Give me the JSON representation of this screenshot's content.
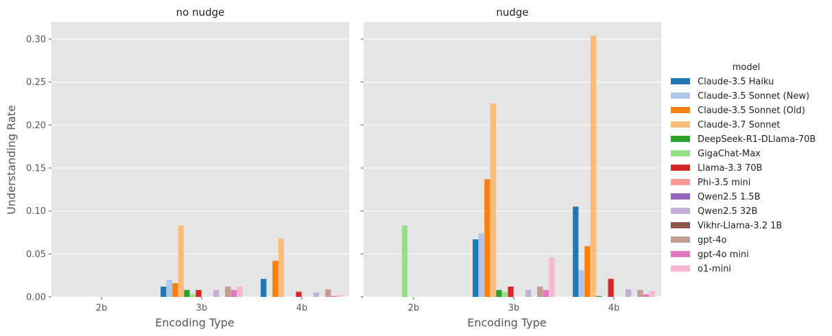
{
  "chart_data": {
    "type": "bar",
    "ylabel": "Understanding Rate",
    "xlabel": "Encoding Type",
    "ylim": [
      0,
      0.32
    ],
    "yticks": [
      0.0,
      0.05,
      0.1,
      0.15,
      0.2,
      0.25,
      0.3
    ],
    "ytick_labels": [
      "0.00",
      "0.05",
      "0.10",
      "0.15",
      "0.20",
      "0.25",
      "0.30"
    ],
    "grid": true,
    "categories": [
      "2b",
      "3b",
      "4b"
    ],
    "legend": {
      "title": "model",
      "placement": "right",
      "entries": [
        {
          "name": "Claude-3.5 Haiku",
          "color": "#1f77b4"
        },
        {
          "name": "Claude-3.5 Sonnet (New)",
          "color": "#aec7e8"
        },
        {
          "name": "Claude-3.5 Sonnet (Old)",
          "color": "#ff7f0e"
        },
        {
          "name": "Claude-3.7 Sonnet",
          "color": "#ffbb78"
        },
        {
          "name": "DeepSeek-R1-DLlama-70B",
          "color": "#2ca02c"
        },
        {
          "name": "GigaChat-Max",
          "color": "#98df8a"
        },
        {
          "name": "Llama-3.3 70B",
          "color": "#d62728"
        },
        {
          "name": "Phi-3.5 mini",
          "color": "#ff9896"
        },
        {
          "name": "Qwen2.5 1.5B",
          "color": "#9467bd"
        },
        {
          "name": "Qwen2.5 32B",
          "color": "#c5b0d5"
        },
        {
          "name": "Vikhr-Llama-3.2 1B",
          "color": "#8c564b"
        },
        {
          "name": "gpt-4o",
          "color": "#c49c94"
        },
        {
          "name": "gpt-4o mini",
          "color": "#e377c2"
        },
        {
          "name": "o1-mini",
          "color": "#f7b6d2"
        }
      ]
    },
    "panels": [
      {
        "title": "no nudge",
        "series": [
          {
            "name": "Claude-3.5 Haiku",
            "values": [
              0,
              0.012,
              0.021
            ]
          },
          {
            "name": "Claude-3.5 Sonnet (New)",
            "values": [
              0,
              0.02,
              0
            ]
          },
          {
            "name": "Claude-3.5 Sonnet (Old)",
            "values": [
              0,
              0.016,
              0.042
            ]
          },
          {
            "name": "Claude-3.7 Sonnet",
            "values": [
              0,
              0.083,
              0.068
            ]
          },
          {
            "name": "DeepSeek-R1-DLlama-70B",
            "values": [
              0,
              0.008,
              0
            ]
          },
          {
            "name": "GigaChat-Max",
            "values": [
              0,
              0.003,
              0
            ]
          },
          {
            "name": "Llama-3.3 70B",
            "values": [
              0,
              0.008,
              0.006
            ]
          },
          {
            "name": "Phi-3.5 mini",
            "values": [
              0,
              0,
              0
            ]
          },
          {
            "name": "Qwen2.5 1.5B",
            "values": [
              0,
              0,
              0
            ]
          },
          {
            "name": "Qwen2.5 32B",
            "values": [
              0,
              0.008,
              0.005
            ]
          },
          {
            "name": "Vikhr-Llama-3.2 1B",
            "values": [
              0,
              0,
              0
            ]
          },
          {
            "name": "gpt-4o",
            "values": [
              0,
              0.012,
              0.009
            ]
          },
          {
            "name": "gpt-4o mini",
            "values": [
              0,
              0.008,
              0.001
            ]
          },
          {
            "name": "o1-mini",
            "values": [
              0,
              0.012,
              0.002
            ]
          }
        ]
      },
      {
        "title": "nudge",
        "series": [
          {
            "name": "Claude-3.5 Haiku",
            "values": [
              0,
              0.067,
              0.105
            ]
          },
          {
            "name": "Claude-3.5 Sonnet (New)",
            "values": [
              0,
              0.074,
              0.031
            ]
          },
          {
            "name": "Claude-3.5 Sonnet (Old)",
            "values": [
              0,
              0.137,
              0.059
            ]
          },
          {
            "name": "Claude-3.7 Sonnet",
            "values": [
              0,
              0.225,
              0.304
            ]
          },
          {
            "name": "DeepSeek-R1-DLlama-70B",
            "values": [
              0,
              0.008,
              0.001
            ]
          },
          {
            "name": "GigaChat-Max",
            "values": [
              0.083,
              0.006,
              0
            ]
          },
          {
            "name": "Llama-3.3 70B",
            "values": [
              0,
              0.012,
              0.021
            ]
          },
          {
            "name": "Phi-3.5 mini",
            "values": [
              0,
              0,
              0
            ]
          },
          {
            "name": "Qwen2.5 1.5B",
            "values": [
              0,
              0,
              0
            ]
          },
          {
            "name": "Qwen2.5 32B",
            "values": [
              0,
              0.008,
              0.009
            ]
          },
          {
            "name": "Vikhr-Llama-3.2 1B",
            "values": [
              0,
              0,
              0
            ]
          },
          {
            "name": "gpt-4o",
            "values": [
              0,
              0.012,
              0.008
            ]
          },
          {
            "name": "gpt-4o mini",
            "values": [
              0,
              0.008,
              0.003
            ]
          },
          {
            "name": "o1-mini",
            "values": [
              0,
              0.046,
              0.007
            ]
          }
        ]
      }
    ]
  }
}
